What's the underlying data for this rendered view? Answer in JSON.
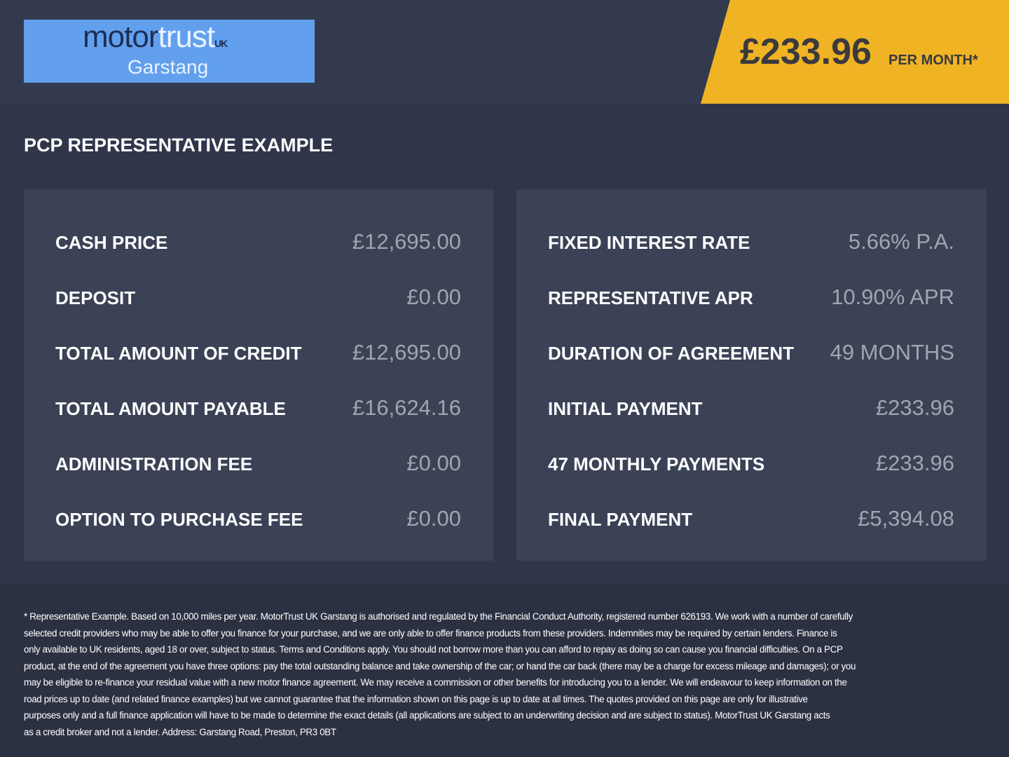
{
  "logo": {
    "brand_part1": "motor",
    "brand_part2": "trust",
    "brand_suffix": "UK",
    "location": "Garstang",
    "background": "#62a0ee"
  },
  "price_banner": {
    "amount": "£233.96",
    "label": "PER MONTH*",
    "background": "#f0b323"
  },
  "section_title": "PCP REPRESENTATIVE EXAMPLE",
  "left_panel": [
    {
      "label": "CASH PRICE",
      "value": "£12,695.00"
    },
    {
      "label": "DEPOSIT",
      "value": "£0.00"
    },
    {
      "label": "TOTAL AMOUNT OF CREDIT",
      "value": "£12,695.00"
    },
    {
      "label": "TOTAL AMOUNT PAYABLE",
      "value": "£16,624.16"
    },
    {
      "label": "ADMINISTRATION FEE",
      "value": "£0.00"
    },
    {
      "label": "OPTION TO PURCHASE FEE",
      "value": "£0.00"
    }
  ],
  "right_panel": [
    {
      "label": "FIXED INTEREST RATE",
      "value": "5.66% P.A."
    },
    {
      "label": "REPRESENTATIVE APR",
      "value": "10.90% APR"
    },
    {
      "label": "DURATION OF AGREEMENT",
      "value": "49 MONTHS"
    },
    {
      "label": "INITIAL PAYMENT",
      "value": "£233.96"
    },
    {
      "label": "47 MONTHLY PAYMENTS",
      "value": "£233.96"
    },
    {
      "label": "FINAL PAYMENT",
      "value": "£5,394.08"
    }
  ],
  "footer_lines": [
    "* Representative Example. Based on 10,000 miles per year. MotorTrust UK Garstang is authorised and regulated by the Financial Conduct Authority, registered number 626193. We work with a number of carefully",
    "selected credit providers who may be able to offer you finance for your purchase, and we are only able to offer finance products from these providers. Indemnities may be required by certain lenders. Finance is",
    "only available to UK residents, aged 18 or over, subject to status. Terms and Conditions apply. You should not borrow more than you can afford to repay as doing so can cause you financial difficulties. On a PCP",
    "product, at the end of the agreement you have three options: pay the total outstanding balance and take ownership of the car; or hand the car back (there may be a charge for excess mileage and damages); or you",
    "may be eligible to re-finance your residual value with a new motor finance agreement. We may receive a commission or other benefits for introducing you to a lender. We will endeavour to keep information on the",
    "road prices up to date (and related finance examples) but we cannot guarantee that the information shown on this page is up to date at all times. The quotes provided on this page are only for illustrative",
    "purposes only and a full finance application will have to be made to determine the exact details (all applications are subject to an underwriting decision and are subject to status). MotorTrust UK Garstang acts",
    "as a credit broker and not a lender. Address: Garstang Road, Preston, PR3 0BT"
  ]
}
